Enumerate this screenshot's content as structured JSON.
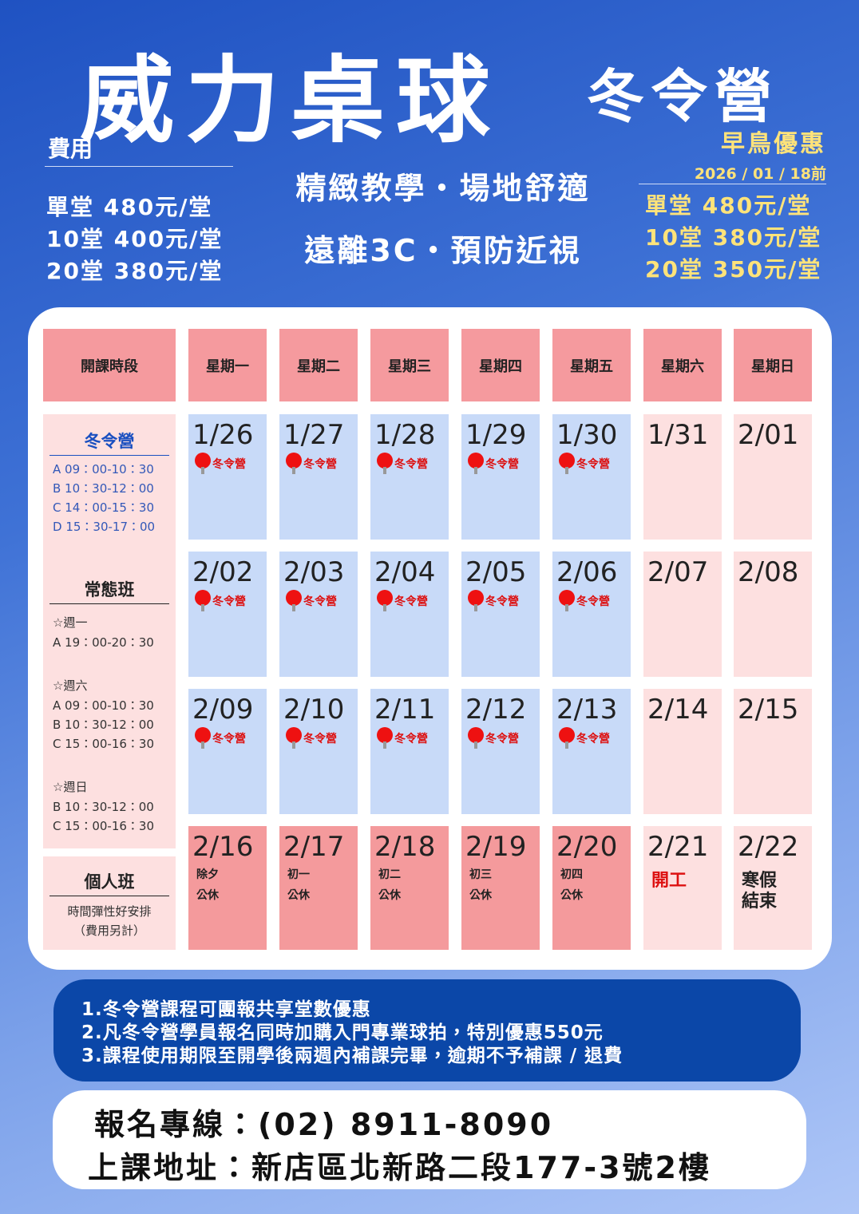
{
  "header": {
    "title": "威力桌球",
    "subtitle": "冬令營"
  },
  "fees": {
    "title": "費用",
    "items": [
      "單堂 480元/堂",
      "10堂 400元/堂",
      "20堂 380元/堂"
    ]
  },
  "slogans": [
    "精緻教學・場地舒適",
    "遠離3C・預防近視"
  ],
  "early_bird": {
    "title": "早鳥優惠",
    "deadline": "2026 / 01 / 18前",
    "items": [
      "單堂 480元/堂",
      "10堂 380元/堂",
      "20堂 350元/堂"
    ]
  },
  "schedule": {
    "headers": [
      "開課時段",
      "星期一",
      "星期二",
      "星期三",
      "星期四",
      "星期五",
      "星期六",
      "星期日"
    ],
    "weeks": [
      [
        {
          "date": "1/26",
          "notes": [
            "冬令營"
          ]
        },
        {
          "date": "1/27",
          "notes": [
            "冬令營"
          ]
        },
        {
          "date": "1/28",
          "notes": [
            "冬令營"
          ]
        },
        {
          "date": "1/29",
          "notes": [
            "冬令營"
          ]
        },
        {
          "date": "1/30",
          "notes": [
            "冬令營"
          ]
        },
        {
          "date": "1/31"
        },
        {
          "date": "2/01"
        }
      ],
      [
        {
          "date": "2/02",
          "notes": [
            "冬令營"
          ]
        },
        {
          "date": "2/03",
          "notes": [
            "冬令營"
          ]
        },
        {
          "date": "2/04",
          "notes": [
            "冬令營"
          ]
        },
        {
          "date": "2/05",
          "notes": [
            "冬令營"
          ]
        },
        {
          "date": "2/06",
          "notes": [
            "冬令營"
          ]
        },
        {
          "date": "2/07"
        },
        {
          "date": "2/08"
        }
      ],
      [
        {
          "date": "2/09",
          "notes": [
            "冬令營"
          ]
        },
        {
          "date": "2/10",
          "notes": [
            "冬令營"
          ]
        },
        {
          "date": "2/11",
          "notes": [
            "冬令營"
          ]
        },
        {
          "date": "2/12",
          "notes": [
            "冬令營"
          ]
        },
        {
          "date": "2/13",
          "notes": [
            "冬令營"
          ]
        },
        {
          "date": "2/14"
        },
        {
          "date": "2/15"
        }
      ],
      [
        {
          "date": "2/16",
          "notes": [
            "除夕",
            "公休"
          ]
        },
        {
          "date": "2/17",
          "notes": [
            "初一",
            "公休"
          ]
        },
        {
          "date": "2/18",
          "notes": [
            "初二",
            "公休"
          ]
        },
        {
          "date": "2/19",
          "notes": [
            "初三",
            "公休"
          ]
        },
        {
          "date": "2/20",
          "notes": [
            "初四",
            "公休"
          ]
        },
        {
          "date": "2/21",
          "notes": [
            "開工"
          ]
        },
        {
          "date": "2/22",
          "notes": [
            "寒假",
            "結束"
          ]
        }
      ]
    ],
    "sidebar": {
      "camp": {
        "title": "冬令營",
        "times": [
          "A 09：00-10：30",
          "B 10：30-12：00",
          "C 14：00-15：30",
          "D 15：30-17：00"
        ]
      },
      "regular": {
        "title": "常態班",
        "groups": [
          {
            "day": "☆週一",
            "times": [
              "A 19：00-20：30"
            ]
          },
          {
            "day": "☆週六",
            "times": [
              "A 09：00-10：30",
              "B 10：30-12：00",
              "C 15：00-16：30"
            ]
          },
          {
            "day": "☆週日",
            "times": [
              "B 10：30-12：00",
              "C 15：00-16：30"
            ]
          }
        ]
      },
      "private": {
        "title": "個人班",
        "lines": [
          "時間彈性好安排",
          "（費用另計）"
        ]
      }
    }
  },
  "notes": [
    "1.冬令營課程可團報共享堂數優惠",
    "2.凡冬令營學員報名同時加購入門專業球拍，特別優惠550元",
    "3.課程使用期限至開學後兩週內補課完畢，逾期不予補課 / 退費"
  ],
  "contact": [
    "報名專線：(02) 8911-8090",
    "上課地址：新店區北新路二段177-3號2樓"
  ]
}
